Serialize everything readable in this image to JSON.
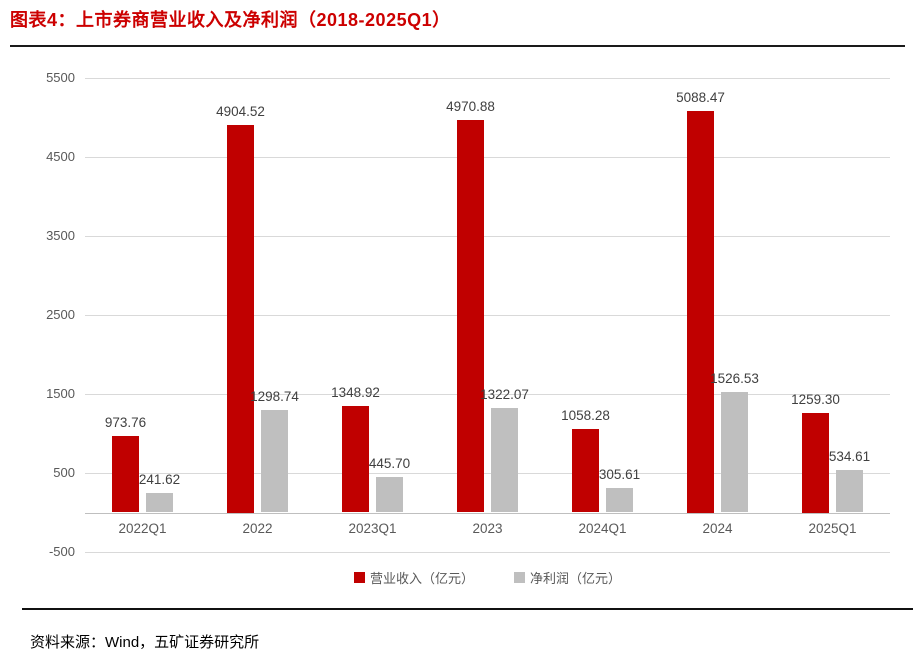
{
  "header": {
    "title": "图表4：上市券商营业收入及净利润（2018-2025Q1）"
  },
  "chart_data": {
    "type": "bar",
    "title": "上市券商营业收入及净利润（2018-2025Q1）",
    "categories": [
      "2022Q1",
      "2022",
      "2023Q1",
      "2023",
      "2024Q1",
      "2024",
      "2025Q1"
    ],
    "series": [
      {
        "name": "营业收入（亿元）",
        "color": "#c00000",
        "values": [
          973.76,
          4904.52,
          1348.92,
          4970.88,
          1058.28,
          5088.47,
          1259.3
        ]
      },
      {
        "name": "净利润（亿元）",
        "color": "#bfbfbf",
        "values": [
          241.62,
          1298.74,
          445.7,
          1322.07,
          305.61,
          1526.53,
          534.61
        ]
      }
    ],
    "y_ticks": [
      5500,
      4500,
      3500,
      2500,
      1500,
      500,
      -500
    ],
    "ylim": [
      -500,
      5500
    ],
    "grid": true,
    "value_labels": true,
    "value_label_decimals": 2,
    "legend_position": "bottom",
    "xlabel": "",
    "ylabel": ""
  },
  "colors": {
    "title": "#cc0000",
    "gridline": "#d9d9d9",
    "axis_line": "#bfbfbf",
    "axis_text": "#595959",
    "value_text": "#404040"
  },
  "footer": {
    "source": "资料来源：Wind，五矿证券研究所"
  }
}
